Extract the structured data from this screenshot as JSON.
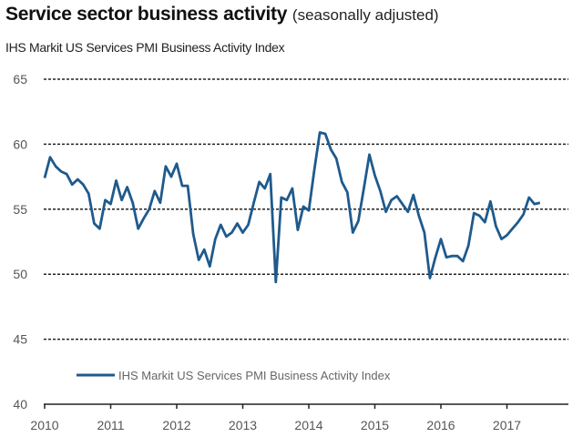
{
  "title": "Service sector business activity",
  "title_note": "(seasonally adjusted)",
  "subtitle": "IHS Markit US Services PMI Business Activity Index",
  "chart_data": {
    "type": "line",
    "title": "Service sector business activity (seasonally adjusted)",
    "subtitle": "IHS Markit US Services PMI Business Activity Index",
    "xlabel": "",
    "ylabel": "",
    "ylim": [
      40,
      65
    ],
    "yticks": [
      40,
      45,
      50,
      55,
      60,
      65
    ],
    "xlim": [
      2010,
      2017.9
    ],
    "xticks": [
      "2010",
      "2011",
      "2012",
      "2013",
      "2014",
      "2015",
      "2016",
      "2017"
    ],
    "grid": "horizontal dashed",
    "legend_position": "bottom-left",
    "start_month": "2010-01",
    "frequency": "monthly",
    "series": [
      {
        "name": "IHS Markit US Services PMI Business Activity Index",
        "color": "#1f5a8c",
        "values": [
          57.4,
          59.0,
          58.3,
          57.9,
          57.7,
          56.9,
          57.3,
          56.9,
          56.2,
          53.9,
          53.5,
          55.7,
          55.4,
          57.2,
          55.7,
          56.7,
          55.5,
          53.5,
          54.3,
          55.0,
          56.4,
          55.5,
          58.3,
          57.5,
          58.5,
          56.8,
          56.8,
          53.1,
          51.1,
          51.9,
          50.6,
          52.7,
          53.8,
          52.9,
          53.2,
          53.9,
          53.2,
          53.8,
          55.5,
          57.1,
          56.6,
          57.7,
          49.4,
          55.9,
          55.7,
          56.6,
          53.4,
          55.2,
          54.9,
          58.0,
          60.9,
          60.8,
          59.6,
          58.9,
          57.1,
          56.3,
          53.2,
          54.1,
          56.6,
          59.2,
          57.6,
          56.4,
          54.8,
          55.7,
          56.0,
          55.4,
          54.8,
          56.1,
          54.5,
          53.2,
          49.7,
          51.3,
          52.7,
          51.3,
          51.4,
          51.4,
          51.0,
          52.2,
          54.7,
          54.5,
          54.0,
          55.6,
          53.7,
          52.7,
          53.0,
          53.5,
          54.0,
          54.6,
          55.9,
          55.4,
          55.5
        ]
      }
    ]
  }
}
